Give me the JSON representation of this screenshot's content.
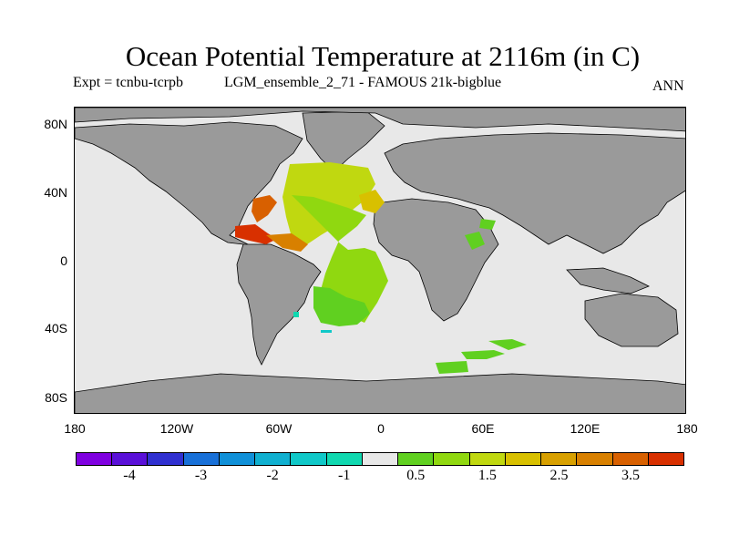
{
  "header": {
    "title": "Ocean Potential Temperature at 2116m (in C)",
    "expt": "Expt = tcnbu-tcrpb",
    "run": "LGM_ensemble_2_71 - FAMOUS 21k-bigblue",
    "period": "ANN"
  },
  "map": {
    "lat_labels": [
      "80N",
      "40N",
      "0",
      "40S",
      "80S"
    ],
    "lat_values": [
      80,
      40,
      0,
      -40,
      -80
    ],
    "lon_labels": [
      "180",
      "120W",
      "60W",
      "0",
      "60E",
      "120E",
      "180"
    ],
    "lon_values": [
      -180,
      -120,
      -60,
      0,
      60,
      120,
      180
    ],
    "colors": {
      "land": "#9a9a9a",
      "no_change_ocean": "#e8e8e8"
    }
  },
  "colorbar": {
    "colors": [
      "#7f00e0",
      "#5a10d8",
      "#3030d0",
      "#1870d8",
      "#1090d8",
      "#10b0d0",
      "#10c8c8",
      "#10d8b0",
      "#e8e8e8",
      "#60d020",
      "#90d810",
      "#c0d810",
      "#d8c000",
      "#d8a000",
      "#d88000",
      "#d86000",
      "#d83000"
    ],
    "labels": [
      "-4",
      "-3",
      "-2",
      "-1",
      "0.5",
      "1.5",
      "2.5",
      "3.5"
    ],
    "label_positions_index": [
      1,
      3,
      5,
      7,
      9,
      11,
      13,
      15
    ]
  }
}
